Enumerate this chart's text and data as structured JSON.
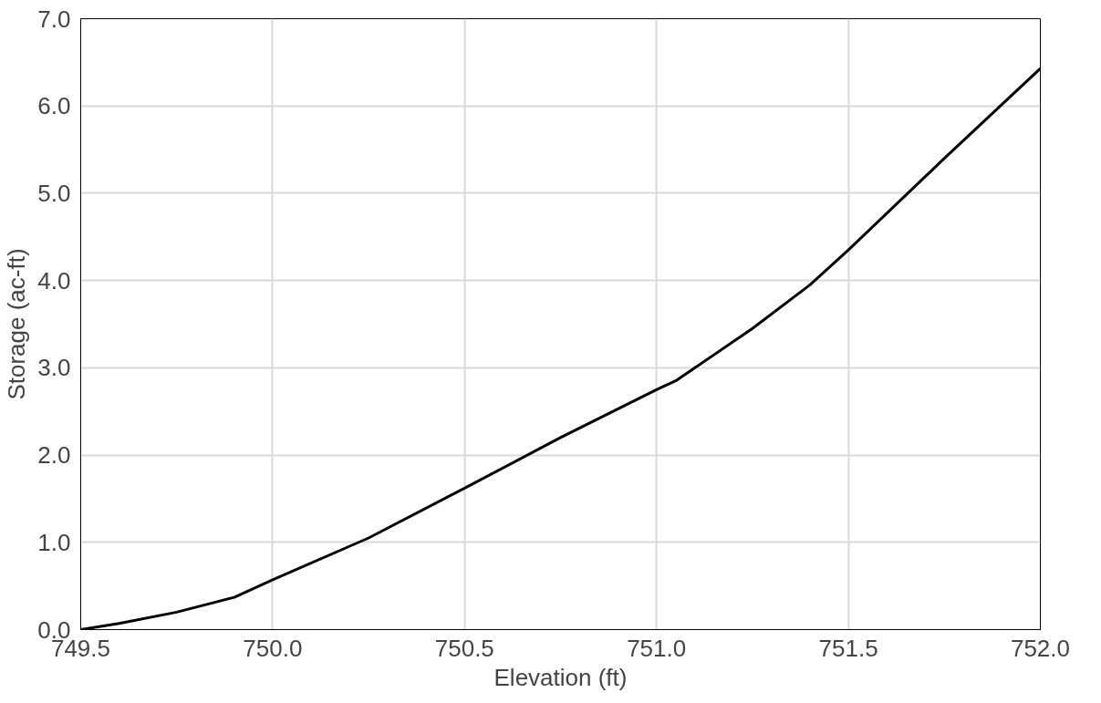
{
  "chart_data": {
    "type": "line",
    "xlabel": "Elevation (ft)",
    "ylabel": "Storage (ac-ft)",
    "x": [
      749.5,
      749.6,
      749.75,
      749.9,
      750.0,
      750.25,
      750.5,
      750.75,
      751.0,
      751.05,
      751.25,
      751.4,
      751.5,
      751.75,
      752.0
    ],
    "series": [
      {
        "color": "#000000",
        "values": [
          0.0,
          0.07,
          0.2,
          0.37,
          0.57,
          1.05,
          1.62,
          2.2,
          2.75,
          2.85,
          3.45,
          3.95,
          4.35,
          5.4,
          6.43
        ]
      }
    ],
    "xlim": [
      749.5,
      752.0
    ],
    "ylim": [
      0,
      7
    ],
    "xticks": [
      {
        "value": 749.5,
        "label": "749.5"
      },
      {
        "value": 750.0,
        "label": "750.0"
      },
      {
        "value": 750.5,
        "label": "750.5"
      },
      {
        "value": 751.0,
        "label": "751.0"
      },
      {
        "value": 751.5,
        "label": "751.5"
      },
      {
        "value": 752.0,
        "label": "752.0"
      }
    ],
    "yticks": [
      {
        "value": 0,
        "label": "0.0"
      },
      {
        "value": 1,
        "label": "1.0"
      },
      {
        "value": 2,
        "label": "2.0"
      },
      {
        "value": 3,
        "label": "3.0"
      },
      {
        "value": 4,
        "label": "4.0"
      },
      {
        "value": 5,
        "label": "5.0"
      },
      {
        "value": 6,
        "label": "6.0"
      },
      {
        "value": 7,
        "label": "7.0"
      }
    ],
    "grid": true,
    "line_style": "solid"
  }
}
